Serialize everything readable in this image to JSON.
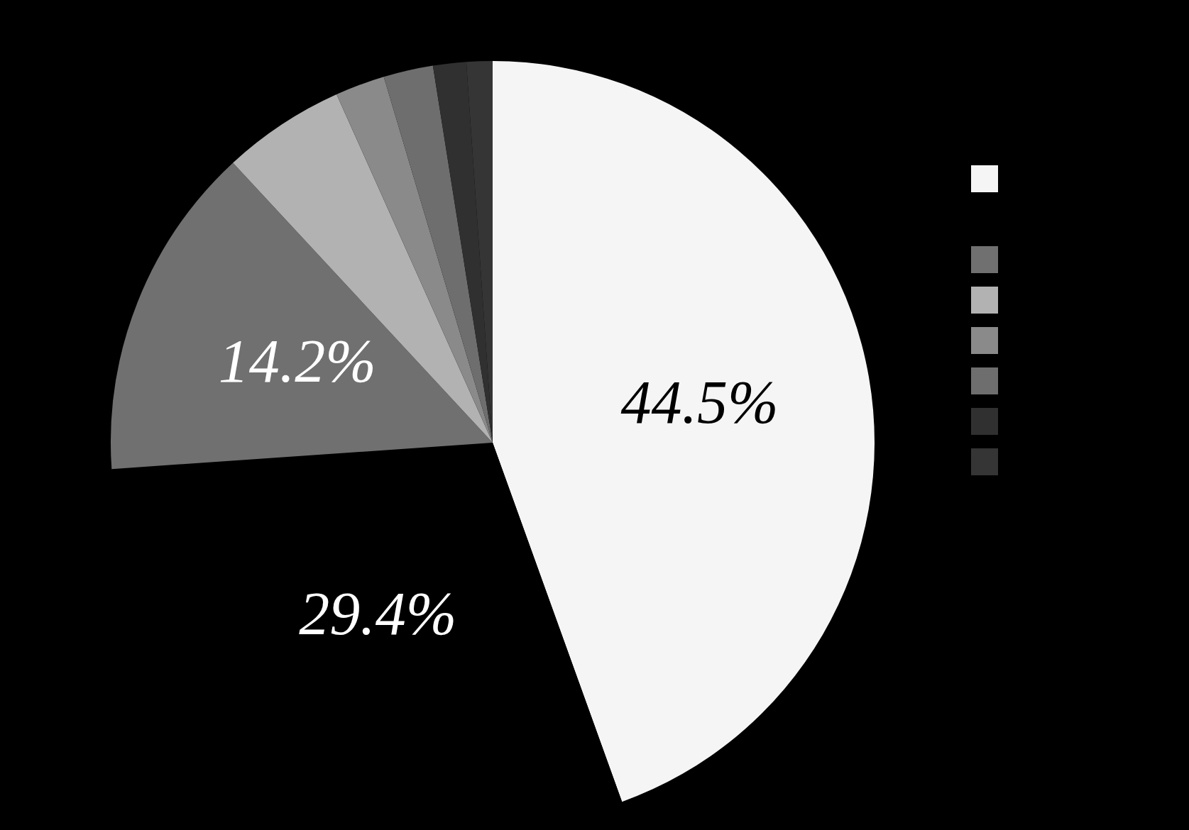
{
  "chart_data": {
    "type": "pie",
    "categories": [
      null,
      null,
      null,
      null,
      null,
      null,
      null,
      null
    ],
    "values": [
      44.5,
      29.4,
      14.2,
      5.2,
      2.1,
      2.1,
      1.4,
      1.1
    ],
    "colors": [
      "#f5f5f5",
      "#000000",
      "#707070",
      "#b2b2b2",
      "#8a8a8a",
      "#6e6e6e",
      "#303030",
      "#353535"
    ],
    "value_labels": [
      "44.5%",
      "29.4%",
      "14.2%",
      null,
      null,
      null,
      null,
      null
    ]
  }
}
